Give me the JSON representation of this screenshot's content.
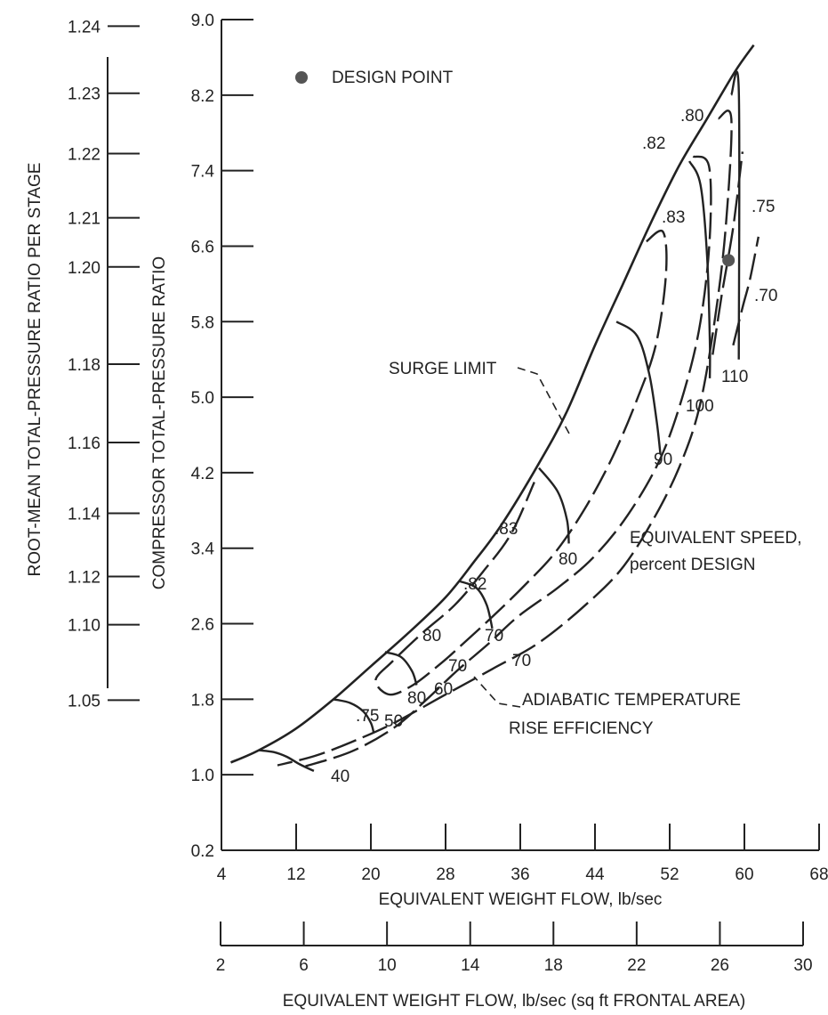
{
  "chart_data": {
    "type": "line",
    "legend": {
      "marker_label": "DESIGN POINT"
    },
    "design_point": {
      "x": 58.3,
      "y": 6.45
    },
    "axes": {
      "x_main": {
        "label": "EQUIVALENT WEIGHT FLOW, lb/sec",
        "range": [
          4,
          68
        ],
        "ticks": [
          "4",
          "12",
          "20",
          "28",
          "36",
          "44",
          "52",
          "60",
          "68"
        ]
      },
      "x_area": {
        "label": "EQUIVALENT WEIGHT FLOW, lb/sec (sq ft FRONTAL AREA)",
        "range": [
          2,
          30
        ],
        "ticks": [
          "2",
          "6",
          "10",
          "14",
          "18",
          "22",
          "26",
          "30"
        ]
      },
      "y_main": {
        "label": "COMPRESSOR TOTAL-PRESSURE RATIO",
        "range": [
          0.2,
          9.0
        ],
        "ticks": [
          {
            "v": 0.2,
            "t": "0.2"
          },
          {
            "v": 1.0,
            "t": "1.0"
          },
          {
            "v": 1.8,
            "t": "1.8"
          },
          {
            "v": 2.6,
            "t": "2.6"
          },
          {
            "v": 3.4,
            "t": "3.4"
          },
          {
            "v": 4.2,
            "t": "4.2"
          },
          {
            "v": 5.0,
            "t": "5.0"
          },
          {
            "v": 5.8,
            "t": "5.8"
          },
          {
            "v": 6.6,
            "t": "6.6"
          },
          {
            "v": 7.4,
            "t": "7.4"
          },
          {
            "v": 8.2,
            "t": "8.2"
          },
          {
            "v": 9.0,
            "t": "9.0"
          }
        ]
      },
      "y_stage": {
        "label": "ROOT-MEAN TOTAL-PRESSURE RATIO PER STAGE",
        "ticks": [
          {
            "t": "1.05",
            "eq": 1.79
          },
          {
            "t": "1.10",
            "eq": 2.59
          },
          {
            "t": "1.12",
            "eq": 3.1
          },
          {
            "t": "1.14",
            "eq": 3.77
          },
          {
            "t": "1.16",
            "eq": 4.52
          },
          {
            "t": "1.18",
            "eq": 5.35
          },
          {
            "t": "1.20",
            "eq": 6.38
          },
          {
            "t": "1.21",
            "eq": 6.9
          },
          {
            "t": "1.22",
            "eq": 7.58
          },
          {
            "t": "1.23",
            "eq": 8.22
          },
          {
            "t": "1.24",
            "eq": 8.93
          }
        ]
      }
    },
    "surge_limit": {
      "label": "SURGE LIMIT",
      "points": [
        [
          5.0,
          1.13
        ],
        [
          8.0,
          1.26
        ],
        [
          12.0,
          1.49
        ],
        [
          16.0,
          1.8
        ],
        [
          20.0,
          2.15
        ],
        [
          24.0,
          2.5
        ],
        [
          28.0,
          2.88
        ],
        [
          31.0,
          3.25
        ],
        [
          34.0,
          3.65
        ],
        [
          38.0,
          4.3
        ],
        [
          41.0,
          4.85
        ],
        [
          44.0,
          5.55
        ],
        [
          47.0,
          6.2
        ],
        [
          50.0,
          6.85
        ],
        [
          53.0,
          7.45
        ],
        [
          56.0,
          7.95
        ],
        [
          59.0,
          8.45
        ],
        [
          61.0,
          8.73
        ]
      ]
    },
    "speed_lines": [
      {
        "name": "40",
        "label": "40",
        "points": [
          [
            8.0,
            1.26
          ],
          [
            9.6,
            1.24
          ],
          [
            11.0,
            1.19
          ],
          [
            12.4,
            1.11
          ],
          [
            13.9,
            1.04
          ]
        ]
      },
      {
        "name": "50",
        "label": "50",
        "points": [
          [
            16.0,
            1.8
          ],
          [
            17.8,
            1.76
          ],
          [
            19.2,
            1.67
          ],
          [
            20.0,
            1.55
          ],
          [
            20.3,
            1.45
          ]
        ]
      },
      {
        "name": "60",
        "label": "60",
        "points": [
          [
            21.5,
            2.3
          ],
          [
            23.2,
            2.25
          ],
          [
            24.4,
            2.1
          ],
          [
            24.9,
            1.95
          ]
        ]
      },
      {
        "name": "70",
        "label": "70",
        "points": [
          [
            29.5,
            3.05
          ],
          [
            31.3,
            2.98
          ],
          [
            32.4,
            2.8
          ],
          [
            33.0,
            2.55
          ]
        ]
      },
      {
        "name": "80",
        "label": "80",
        "points": [
          [
            38.0,
            4.25
          ],
          [
            40.0,
            4.0
          ],
          [
            41.0,
            3.7
          ],
          [
            41.2,
            3.45
          ]
        ]
      },
      {
        "name": "90",
        "label": "90",
        "points": [
          [
            46.3,
            5.8
          ],
          [
            48.5,
            5.65
          ],
          [
            49.8,
            5.25
          ],
          [
            50.6,
            4.75
          ],
          [
            51.0,
            4.4
          ]
        ]
      },
      {
        "name": "100",
        "label": "100",
        "points": [
          [
            54.1,
            7.5
          ],
          [
            55.3,
            7.25
          ],
          [
            56.0,
            6.5
          ],
          [
            56.3,
            5.6
          ],
          [
            56.3,
            5.2
          ]
        ]
      },
      {
        "name": "110",
        "label": "110",
        "points": [
          [
            58.6,
            8.2
          ],
          [
            59.4,
            8.25
          ],
          [
            59.4,
            5.4
          ]
        ]
      }
    ],
    "efficiency_contours": [
      {
        "name": ".80",
        "label": ".80",
        "points": [
          [
            57.2,
            7.95
          ],
          [
            58.6,
            7.95
          ],
          [
            58.0,
            6.8
          ],
          [
            56.8,
            5.8
          ],
          [
            55.2,
            4.9
          ],
          [
            53.2,
            4.3
          ],
          [
            50.5,
            3.75
          ],
          [
            47.0,
            3.2
          ],
          [
            43.0,
            2.8
          ],
          [
            38.0,
            2.4
          ],
          [
            33.0,
            2.12
          ],
          [
            28.0,
            1.85
          ],
          [
            22.5,
            1.55
          ],
          [
            18.0,
            1.35
          ],
          [
            14.0,
            1.2
          ],
          [
            10.0,
            1.1
          ]
        ]
      },
      {
        "name": ".82",
        "label": ".82",
        "points": [
          [
            54.5,
            7.55
          ],
          [
            56.2,
            7.45
          ],
          [
            56.3,
            6.7
          ],
          [
            55.3,
            5.8
          ],
          [
            53.5,
            5.05
          ],
          [
            51.0,
            4.35
          ],
          [
            47.5,
            3.75
          ],
          [
            43.8,
            3.3
          ],
          [
            40.0,
            2.98
          ],
          [
            35.8,
            2.68
          ],
          [
            32.5,
            2.38
          ],
          [
            29.2,
            2.1
          ],
          [
            26.0,
            1.8
          ],
          [
            22.5,
            1.5
          ],
          [
            18.0,
            1.25
          ],
          [
            13.0,
            1.09
          ]
        ]
      },
      {
        "name": ".83",
        "label": ".83",
        "points": [
          [
            49.5,
            6.65
          ],
          [
            51.3,
            6.75
          ],
          [
            51.6,
            6.3
          ],
          [
            50.5,
            5.55
          ],
          [
            48.4,
            4.95
          ],
          [
            45.8,
            4.35
          ],
          [
            42.8,
            3.8
          ],
          [
            39.7,
            3.35
          ],
          [
            36.6,
            3.02
          ],
          [
            33.3,
            2.7
          ],
          [
            30.0,
            2.4
          ],
          [
            27.5,
            2.18
          ],
          [
            24.5,
            1.95
          ],
          [
            22.0,
            1.85
          ],
          [
            20.5,
            2.0
          ],
          [
            22.3,
            2.2
          ],
          [
            25.5,
            2.5
          ],
          [
            29.0,
            2.8
          ],
          [
            32.0,
            3.15
          ],
          [
            35.0,
            3.55
          ],
          [
            37.5,
            4.1
          ]
        ]
      },
      {
        "name": ".75",
        "label": ".75",
        "points": [
          [
            56.6,
            5.45
          ],
          [
            57.6,
            6.1
          ],
          [
            58.8,
            6.8
          ],
          [
            59.8,
            7.6
          ]
        ]
      },
      {
        "name": ".70",
        "label": ".70",
        "points": [
          [
            58.8,
            5.55
          ],
          [
            59.8,
            5.95
          ],
          [
            60.6,
            6.25
          ],
          [
            61.5,
            6.7
          ]
        ]
      }
    ]
  },
  "annotations": {
    "surge_limit": "SURGE LIMIT",
    "adiabatic_line1": "ADIABATIC TEMPERATURE",
    "adiabatic_line2": "RISE EFFICIENCY",
    "equiv_speed_line1": "EQUIVALENT SPEED,",
    "equiv_speed_line2": "percent DESIGN",
    "lbl_75_low": ".75",
    "lbl_80_low": "80",
    "lbl_70_low": "70",
    "lbl_80_mid": "80",
    "lbl_70_mid": "70",
    "lbl_82_mid": ".82",
    "lbl_83_mid": ".83",
    "lbl_83_up": ".83",
    "lbl_82_up": ".82",
    "lbl_80_up": ".80",
    "lbl_75_up": ".75",
    "lbl_70_up": ".70"
  }
}
